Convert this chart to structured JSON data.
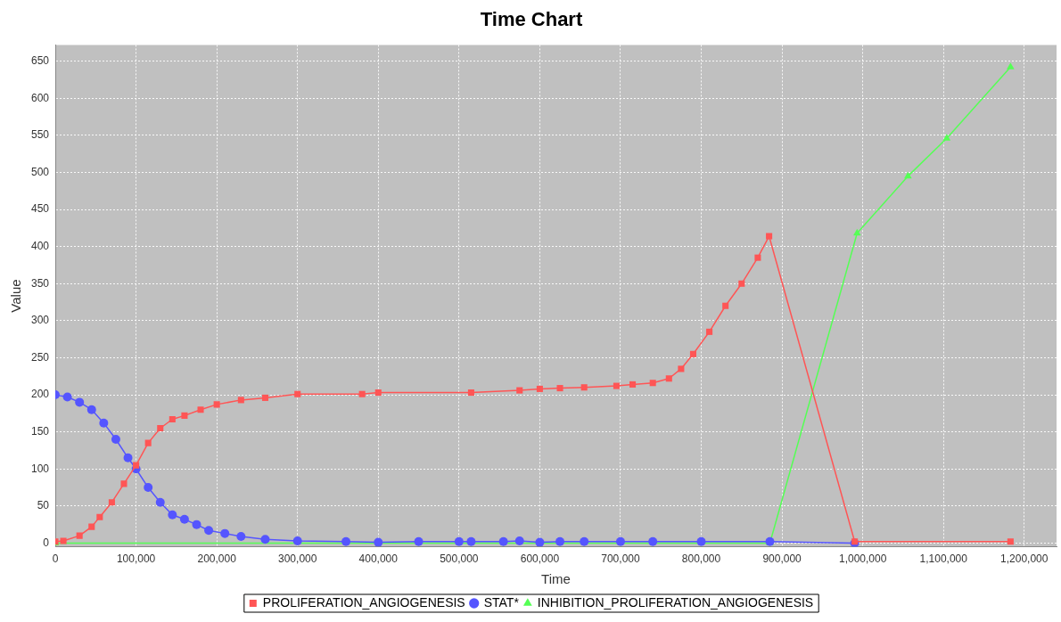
{
  "chart_data": {
    "type": "line",
    "title": "Time Chart",
    "xlabel": "Time",
    "ylabel": "Value",
    "xlim": [
      0,
      1240000
    ],
    "ylim": [
      -5,
      672
    ],
    "xticks": [
      0,
      {
        "value": 100000,
        "label": "100,000"
      },
      {
        "value": 200000,
        "label": "200,000"
      },
      {
        "value": 300000,
        "label": "300,000"
      },
      {
        "value": 400000,
        "label": "400,000"
      },
      {
        "value": 500000,
        "label": "500,000"
      },
      {
        "value": 600000,
        "label": "600,000"
      },
      {
        "value": 700000,
        "label": "700,000"
      },
      {
        "value": 800000,
        "label": "800,000"
      },
      {
        "value": 900000,
        "label": "900,000"
      },
      {
        "value": 1000000,
        "label": "1,000,000"
      },
      {
        "value": 1100000,
        "label": "1,100,000"
      },
      {
        "value": 1200000,
        "label": "1,200,000"
      }
    ],
    "yticks": [
      0,
      50,
      100,
      150,
      200,
      250,
      300,
      350,
      400,
      450,
      500,
      550,
      600,
      650
    ],
    "grid": true,
    "legend": "bottom",
    "series": [
      {
        "name": "PROLIFERATION_ANGIOGENESIS",
        "color": "#ff5555",
        "marker": "square",
        "x": [
          0,
          10000,
          30000,
          45000,
          55000,
          70000,
          85000,
          100000,
          115000,
          130000,
          145000,
          160000,
          180000,
          200000,
          230000,
          260000,
          300000,
          380000,
          400000,
          515000,
          575000,
          600000,
          625000,
          655000,
          695000,
          715000,
          740000,
          760000,
          775000,
          790000,
          810000,
          830000,
          850000,
          870000,
          884000,
          990000,
          1183000
        ],
        "values": [
          2,
          3,
          10,
          22,
          35,
          55,
          80,
          105,
          135,
          155,
          167,
          172,
          180,
          187,
          193,
          196,
          201,
          201,
          203,
          203,
          206,
          208,
          209,
          210,
          212,
          214,
          216,
          222,
          235,
          255,
          285,
          320,
          350,
          385,
          414,
          2,
          2
        ]
      },
      {
        "name": "STAT*",
        "color": "#5555ff",
        "marker": "circle",
        "x": [
          0,
          15000,
          30000,
          45000,
          60000,
          75000,
          90000,
          100000,
          115000,
          130000,
          145000,
          160000,
          175000,
          190000,
          210000,
          230000,
          260000,
          300000,
          360000,
          400000,
          450000,
          500000,
          515000,
          555000,
          575000,
          600000,
          625000,
          655000,
          700000,
          740000,
          800000,
          885000,
          990000
        ],
        "values": [
          200,
          197,
          190,
          180,
          162,
          140,
          115,
          100,
          75,
          55,
          38,
          32,
          25,
          17,
          13,
          9,
          5,
          3,
          2,
          1,
          2,
          2,
          2,
          2,
          3,
          1,
          2,
          2,
          2,
          2,
          2,
          2,
          0
        ]
      },
      {
        "name": "INHIBITION_PROLIFERATION_ANGIOGENESIS",
        "color": "#55ff55",
        "marker": "triangle",
        "x": [
          0,
          885000,
          993000,
          1056000,
          1104000,
          1183000
        ],
        "values": [
          0,
          0,
          418,
          495,
          546,
          642
        ]
      }
    ]
  }
}
